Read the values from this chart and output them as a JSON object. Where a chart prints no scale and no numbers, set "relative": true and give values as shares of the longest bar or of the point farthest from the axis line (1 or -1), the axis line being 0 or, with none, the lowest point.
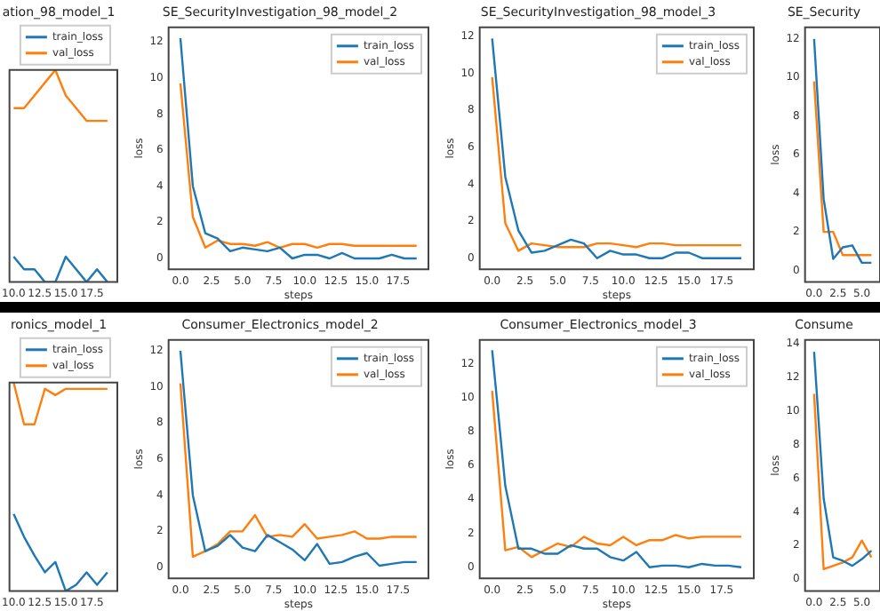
{
  "chart_data": [
    {
      "type": "line",
      "title": "ation_98_model_1",
      "x": [
        10,
        11,
        12,
        13,
        14,
        15,
        16,
        17,
        18,
        19
      ],
      "relative": true,
      "series": [
        {
          "name": "train_loss",
          "color": "#1f77b4",
          "values": [
            0.12,
            0.06,
            0.06,
            0,
            0,
            0.12,
            0.06,
            0,
            0.06,
            0
          ]
        },
        {
          "name": "val_loss",
          "color": "#ff7f0e",
          "values": [
            0.82,
            0.82,
            0.88,
            0.94,
            1,
            0.88,
            0.82,
            0.76,
            0.76,
            0.76
          ]
        }
      ],
      "xlim": [
        9.6,
        19.95
      ],
      "xticks": [
        {
          "value": 10,
          "label": "10.0"
        },
        {
          "value": 12.5,
          "label": "12.5"
        },
        {
          "value": 15,
          "label": "15.0"
        },
        {
          "value": 17.5,
          "label": "17.5"
        }
      ],
      "tick_labels": "x",
      "legend": "top"
    },
    {
      "type": "line",
      "title": "SE_SecurityInvestigation_98_model_2",
      "xlabel": "steps",
      "ylabel": "loss",
      "x": [
        0,
        1,
        2,
        3,
        4,
        5,
        6,
        7,
        8,
        9,
        10,
        11,
        12,
        13,
        14,
        15,
        16,
        17,
        18,
        19
      ],
      "series": [
        {
          "name": "train_loss",
          "color": "#1f77b4",
          "values": [
            12.2,
            4.0,
            1.4,
            1.1,
            0.4,
            0.6,
            0.5,
            0.4,
            0.6,
            0.0,
            0.2,
            0.2,
            0.0,
            0.3,
            0.0,
            0.0,
            0.0,
            0.2,
            0.0,
            0.0
          ]
        },
        {
          "name": "val_loss",
          "color": "#ff7f0e",
          "values": [
            9.7,
            2.3,
            0.6,
            1.0,
            0.8,
            0.8,
            0.7,
            0.9,
            0.6,
            0.8,
            0.8,
            0.6,
            0.8,
            0.8,
            0.7,
            0.7,
            0.7,
            0.7,
            0.7,
            0.7
          ]
        }
      ],
      "xlim": [
        -0.95,
        19.95
      ],
      "xticks": [
        {
          "value": 0,
          "label": "0.0"
        },
        {
          "value": 2.5,
          "label": "2.5"
        },
        {
          "value": 5,
          "label": "5.0"
        },
        {
          "value": 7.5,
          "label": "7.5"
        },
        {
          "value": 10,
          "label": "10.0"
        },
        {
          "value": 12.5,
          "label": "12.5"
        },
        {
          "value": 15,
          "label": "15.0"
        },
        {
          "value": 17.5,
          "label": "17.5"
        }
      ],
      "ylim": [
        -0.6,
        12.8
      ],
      "yticks": [
        0,
        2,
        4,
        6,
        8,
        10,
        12
      ],
      "legend": "top right"
    },
    {
      "type": "line",
      "title": "SE_SecurityInvestigation_98_model_3",
      "xlabel": "steps",
      "ylabel": "loss",
      "x": [
        0,
        1,
        2,
        3,
        4,
        5,
        6,
        7,
        8,
        9,
        10,
        11,
        12,
        13,
        14,
        15,
        16,
        17,
        18,
        19
      ],
      "series": [
        {
          "name": "train_loss",
          "color": "#1f77b4",
          "values": [
            11.9,
            4.4,
            1.5,
            0.3,
            0.4,
            0.7,
            1.0,
            0.8,
            0.0,
            0.4,
            0.2,
            0.2,
            0.0,
            0.0,
            0.3,
            0.3,
            0.0,
            0.0,
            0.0,
            0.0
          ]
        },
        {
          "name": "val_loss",
          "color": "#ff7f0e",
          "values": [
            9.8,
            1.9,
            0.4,
            0.8,
            0.7,
            0.6,
            0.6,
            0.6,
            0.8,
            0.8,
            0.7,
            0.6,
            0.8,
            0.8,
            0.7,
            0.7,
            0.7,
            0.7,
            0.7,
            0.7
          ]
        }
      ],
      "xlim": [
        -0.95,
        19.95
      ],
      "xticks": [
        {
          "value": 0,
          "label": "0.0"
        },
        {
          "value": 2.5,
          "label": "2.5"
        },
        {
          "value": 5,
          "label": "5.0"
        },
        {
          "value": 7.5,
          "label": "7.5"
        },
        {
          "value": 10,
          "label": "10.0"
        },
        {
          "value": 12.5,
          "label": "12.5"
        },
        {
          "value": 15,
          "label": "15.0"
        },
        {
          "value": 17.5,
          "label": "17.5"
        }
      ],
      "ylim": [
        -0.6,
        12.5
      ],
      "yticks": [
        0,
        2,
        4,
        6,
        8,
        10,
        12
      ],
      "legend": "top right"
    },
    {
      "type": "line",
      "title": "SE_Security",
      "ylabel": "loss",
      "x": [
        0,
        1,
        2,
        3,
        4,
        5,
        6
      ],
      "series": [
        {
          "color": "#1f77b4",
          "values": [
            12.0,
            3.7,
            0.6,
            1.2,
            1.3,
            0.4,
            0.4
          ]
        },
        {
          "color": "#ff7f0e",
          "values": [
            9.8,
            2.0,
            2.0,
            0.8,
            0.8,
            0.8,
            0.8
          ]
        }
      ],
      "xlim": [
        -0.95,
        6.9
      ],
      "xticks": [
        {
          "value": 0,
          "label": "0.0"
        },
        {
          "value": 2.5,
          "label": "2.5"
        },
        {
          "value": 5,
          "label": "5.0"
        }
      ],
      "ylim": [
        -0.6,
        12.6
      ],
      "yticks": [
        0,
        2,
        4,
        6,
        8,
        10,
        12
      ]
    },
    {
      "type": "line",
      "title": "ronics_model_1",
      "x": [
        10,
        11,
        12,
        13,
        14,
        15,
        16,
        17,
        18,
        19
      ],
      "relative": true,
      "series": [
        {
          "name": "train_loss",
          "color": "#1f77b4",
          "values": [
            0.37,
            0.26,
            0.17,
            0.09,
            0.14,
            0,
            0.03,
            0.09,
            0.03,
            0.09
          ]
        },
        {
          "name": "val_loss",
          "color": "#ff7f0e",
          "values": [
            1,
            0.8,
            0.8,
            0.97,
            0.94,
            0.97,
            0.97,
            0.97,
            0.97,
            0.97
          ]
        }
      ],
      "xlim": [
        9.6,
        19.95
      ],
      "xticks": [
        {
          "value": 10,
          "label": "10.0"
        },
        {
          "value": 12.5,
          "label": "12.5"
        },
        {
          "value": 15,
          "label": "15.0"
        },
        {
          "value": 17.5,
          "label": "17.5"
        }
      ],
      "tick_labels": "x",
      "legend": "top"
    },
    {
      "type": "line",
      "title": "Consumer_Electronics_model_2",
      "xlabel": "steps",
      "ylabel": "loss",
      "x": [
        0,
        1,
        2,
        3,
        4,
        5,
        6,
        7,
        8,
        9,
        10,
        11,
        12,
        13,
        14,
        15,
        16,
        17,
        18,
        19
      ],
      "series": [
        {
          "name": "train_loss",
          "color": "#1f77b4",
          "values": [
            12.0,
            4.0,
            0.9,
            1.2,
            1.8,
            1.1,
            0.9,
            1.8,
            1.4,
            1.0,
            0.4,
            1.3,
            0.2,
            0.3,
            0.6,
            0.8,
            0.1,
            0.2,
            0.3,
            0.3
          ]
        },
        {
          "name": "val_loss",
          "color": "#ff7f0e",
          "values": [
            10.2,
            0.6,
            0.9,
            1.3,
            2.0,
            2.0,
            2.9,
            1.7,
            1.8,
            1.7,
            2.4,
            1.6,
            1.7,
            1.8,
            2.0,
            1.6,
            1.6,
            1.7,
            1.7,
            1.7
          ]
        }
      ],
      "xlim": [
        -0.95,
        19.95
      ],
      "xticks": [
        {
          "value": 0,
          "label": "0.0"
        },
        {
          "value": 2.5,
          "label": "2.5"
        },
        {
          "value": 5,
          "label": "5.0"
        },
        {
          "value": 7.5,
          "label": "7.5"
        },
        {
          "value": 10,
          "label": "10.0"
        },
        {
          "value": 12.5,
          "label": "12.5"
        },
        {
          "value": 15,
          "label": "15.0"
        },
        {
          "value": 17.5,
          "label": "17.5"
        }
      ],
      "ylim": [
        -0.6,
        12.6
      ],
      "yticks": [
        0,
        2,
        4,
        6,
        8,
        10,
        12
      ],
      "legend": "top right"
    },
    {
      "type": "line",
      "title": "Consumer_Electronics_model_3",
      "xlabel": "steps",
      "ylabel": "loss",
      "x": [
        0,
        1,
        2,
        3,
        4,
        5,
        6,
        7,
        8,
        9,
        10,
        11,
        12,
        13,
        14,
        15,
        16,
        17,
        18,
        19
      ],
      "series": [
        {
          "name": "train_loss",
          "color": "#1f77b4",
          "values": [
            12.8,
            4.8,
            1.1,
            1.1,
            0.8,
            0.8,
            1.3,
            1.1,
            1.1,
            0.6,
            0.4,
            0.9,
            0.0,
            0.1,
            0.1,
            0.0,
            0.2,
            0.1,
            0.1,
            0.0
          ]
        },
        {
          "name": "val_loss",
          "color": "#ff7f0e",
          "values": [
            10.4,
            1.0,
            1.2,
            0.6,
            1.0,
            1.4,
            1.2,
            1.8,
            1.4,
            1.3,
            1.8,
            1.3,
            1.6,
            1.6,
            1.9,
            1.7,
            1.8,
            1.8,
            1.8,
            1.8
          ]
        }
      ],
      "xlim": [
        -0.95,
        19.95
      ],
      "xticks": [
        {
          "value": 0,
          "label": "0.0"
        },
        {
          "value": 2.5,
          "label": "2.5"
        },
        {
          "value": 5,
          "label": "5.0"
        },
        {
          "value": 7.5,
          "label": "7.5"
        },
        {
          "value": 10,
          "label": "10.0"
        },
        {
          "value": 12.5,
          "label": "12.5"
        },
        {
          "value": 15,
          "label": "15.0"
        },
        {
          "value": 17.5,
          "label": "17.5"
        }
      ],
      "ylim": [
        -0.65,
        13.4
      ],
      "yticks": [
        0,
        2,
        4,
        6,
        8,
        10,
        12
      ],
      "legend": "top right"
    },
    {
      "type": "line",
      "title": "Consume",
      "ylabel": "loss",
      "x": [
        0,
        1,
        2,
        3,
        4,
        5,
        6
      ],
      "series": [
        {
          "color": "#1f77b4",
          "values": [
            13.5,
            4.8,
            1.3,
            1.1,
            0.8,
            1.2,
            1.7
          ]
        },
        {
          "color": "#ff7f0e",
          "values": [
            11.0,
            0.6,
            0.8,
            1.0,
            1.3,
            2.3,
            1.3
          ]
        }
      ],
      "xlim": [
        -0.95,
        6.9
      ],
      "xticks": [
        {
          "value": 0,
          "label": "0.0"
        },
        {
          "value": 2.5,
          "label": "2.5"
        },
        {
          "value": 5,
          "label": "5.0"
        }
      ],
      "ylim": [
        -0.7,
        14.2
      ],
      "yticks": [
        0,
        2,
        4,
        6,
        8,
        10,
        12,
        14
      ]
    }
  ]
}
